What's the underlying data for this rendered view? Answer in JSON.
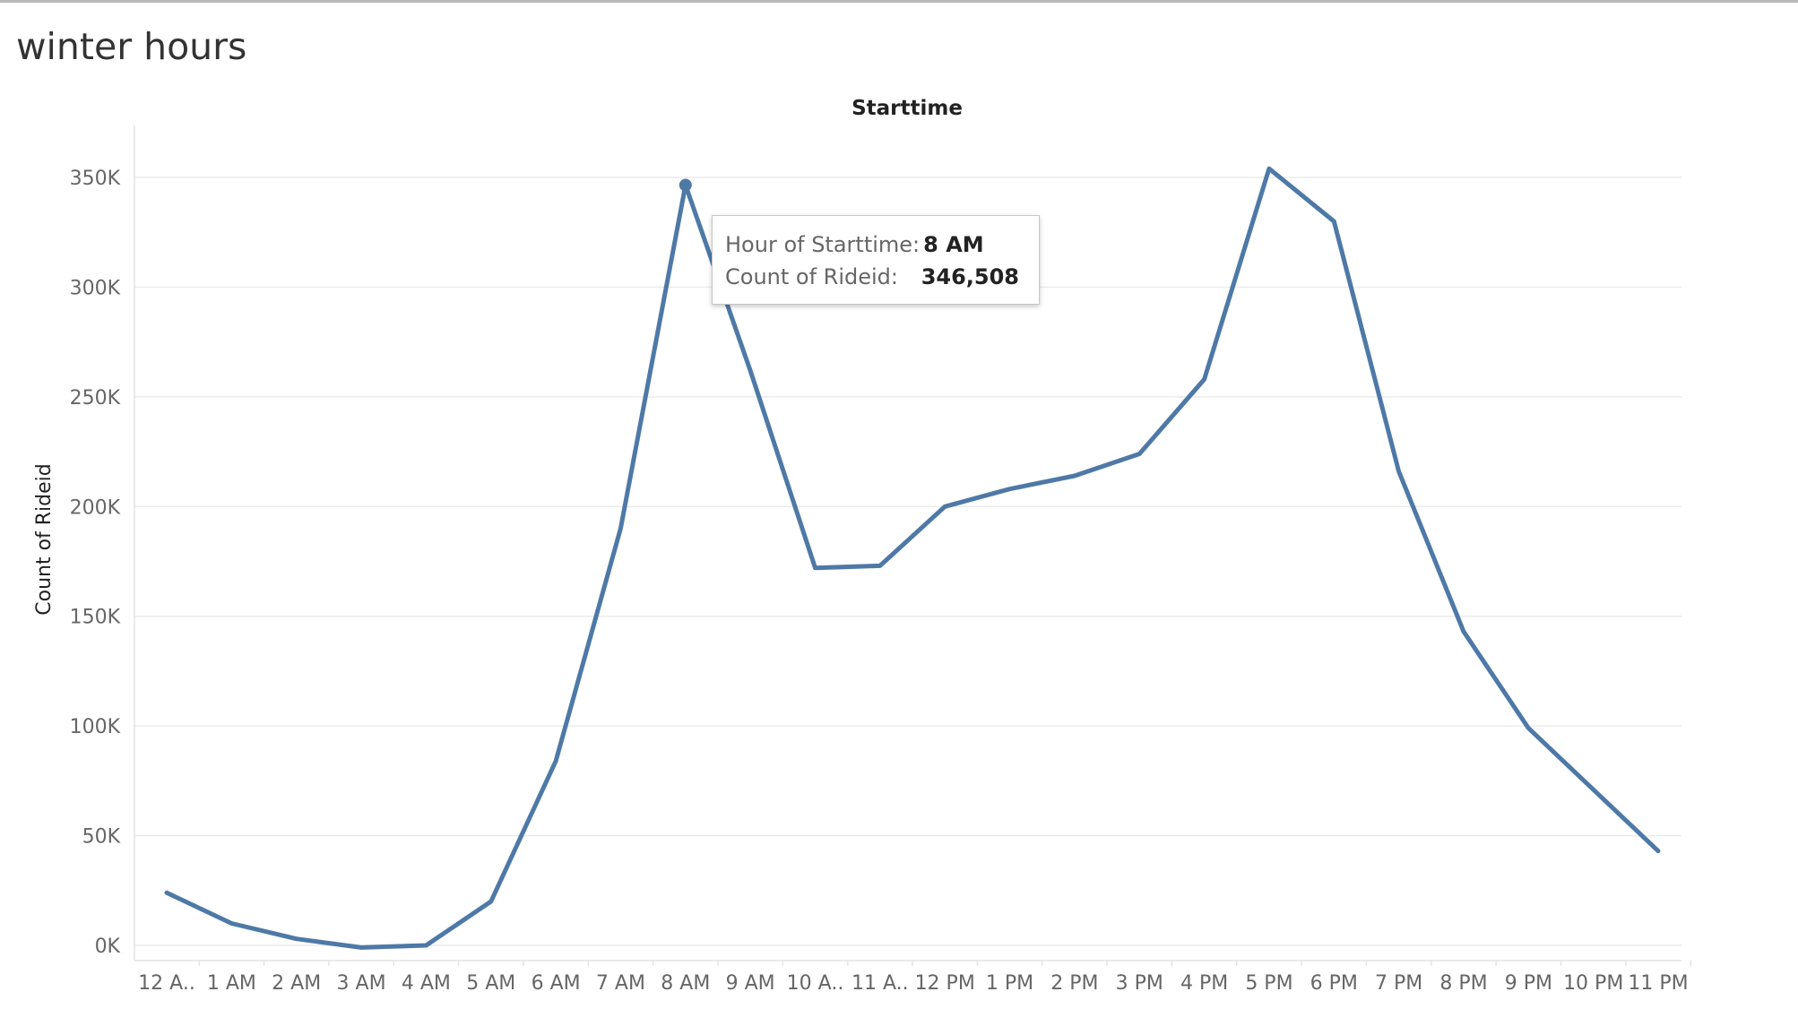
{
  "sheet_title": "winter hours",
  "tooltip": {
    "label1": "Hour of Starttime:",
    "value1": "8 AM",
    "label2": "Count of Rideid:",
    "value2": "346,508"
  },
  "chart_data": {
    "type": "line",
    "title": "Starttime",
    "xlabel": "",
    "ylabel": "Count of Rideid",
    "categories": [
      "12 A..",
      "1 AM",
      "2 AM",
      "3 AM",
      "4 AM",
      "5 AM",
      "6 AM",
      "7 AM",
      "8 AM",
      "9 AM",
      "10 A..",
      "11 A..",
      "12 PM",
      "1 PM",
      "2 PM",
      "3 PM",
      "4 PM",
      "5 PM",
      "6 PM",
      "7 PM",
      "8 PM",
      "9 PM",
      "10 PM",
      "11 PM"
    ],
    "series": [
      {
        "values": [
          24000,
          10000,
          3000,
          -1000,
          0,
          20000,
          84000,
          190000,
          346508,
          262000,
          172000,
          173000,
          200000,
          208000,
          214000,
          224000,
          258000,
          354000,
          330000,
          216000,
          143000,
          99000,
          71000,
          43000
        ]
      }
    ],
    "yticks": [
      0,
      50000,
      100000,
      150000,
      200000,
      250000,
      300000,
      350000
    ],
    "ytick_labels": [
      "0K",
      "50K",
      "100K",
      "150K",
      "200K",
      "250K",
      "300K",
      "350K"
    ],
    "ylim": [
      -6000,
      370000
    ],
    "grid": true,
    "line_color": "#4e79a7",
    "highlighted_category": "8 AM"
  }
}
